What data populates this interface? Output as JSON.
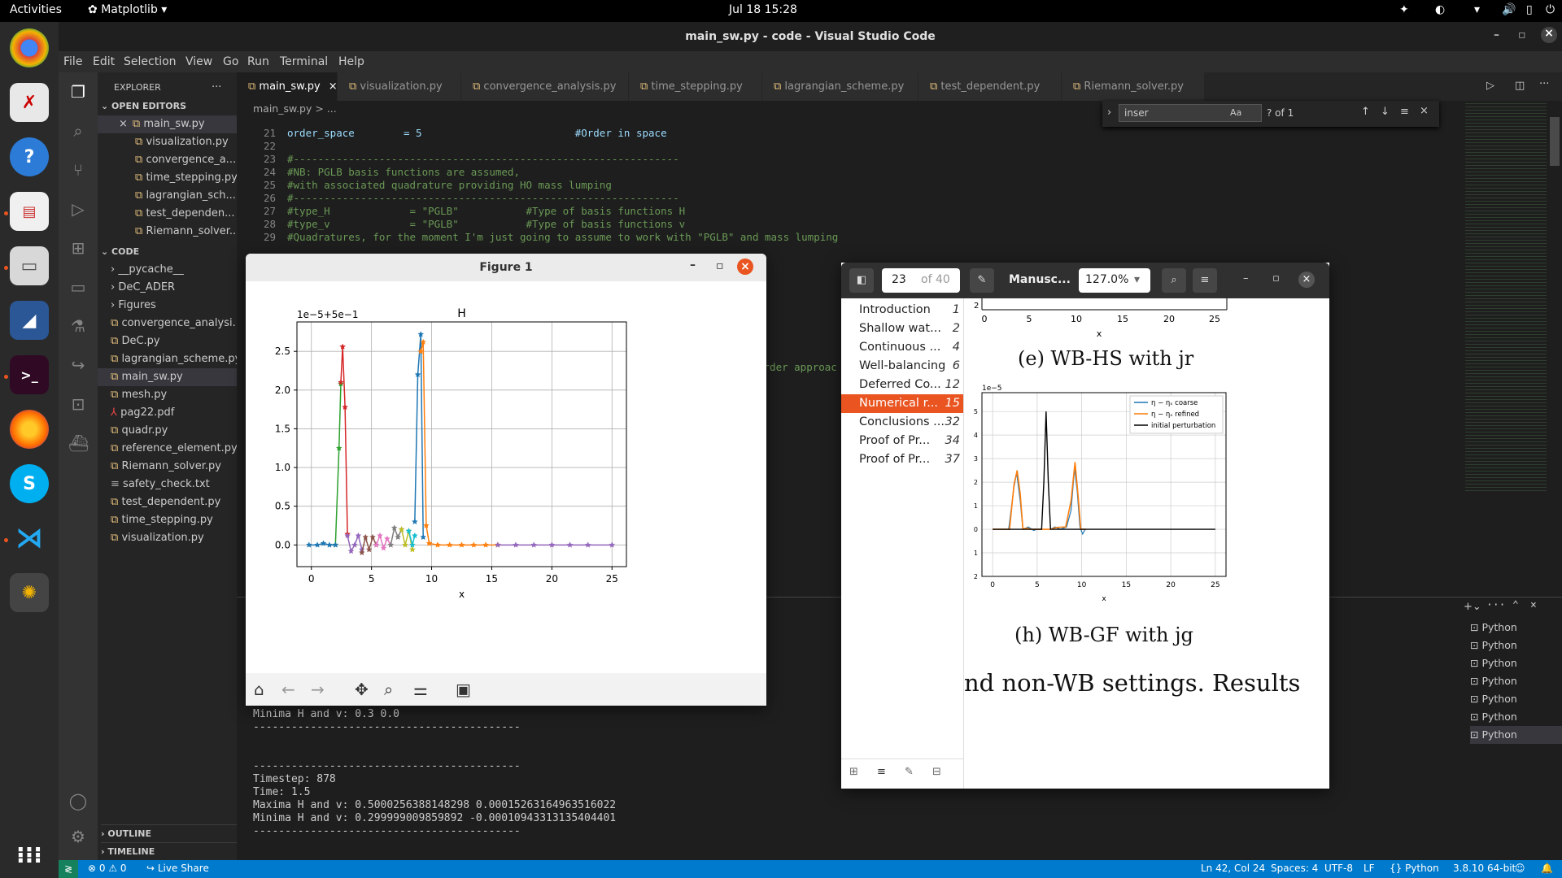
{
  "topbar": {
    "activities": "Activities",
    "app": "Matplotlib",
    "clock": "Jul 18  15:28"
  },
  "window_title": "main_sw.py - code - Visual Studio Code",
  "menu": [
    "File",
    "Edit",
    "Selection",
    "View",
    "Go",
    "Run",
    "Terminal",
    "Help"
  ],
  "explorer": {
    "title": "EXPLORER",
    "open_editors_label": "OPEN EDITORS",
    "open_editors": [
      "main_sw.py",
      "visualization.py",
      "convergence_a...",
      "time_stepping.py",
      "lagrangian_sch...",
      "test_dependen...",
      "Riemann_solver..."
    ],
    "folder_label": "CODE",
    "files": [
      "__pycache__",
      "DeC_ADER",
      "Figures",
      "convergence_analysi...",
      "DeC.py",
      "lagrangian_scheme.py",
      "main_sw.py",
      "mesh.py",
      "pag22.pdf",
      "quadr.py",
      "reference_element.py",
      "Riemann_solver.py",
      "safety_check.txt",
      "test_dependent.py",
      "time_stepping.py",
      "visualization.py"
    ],
    "outline_label": "OUTLINE",
    "timeline_label": "TIMELINE"
  },
  "tabs": [
    "main_sw.py",
    "visualization.py",
    "convergence_analysis.py",
    "time_stepping.py",
    "lagrangian_scheme.py",
    "test_dependent.py",
    "Riemann_solver.py"
  ],
  "breadcrumb": "main_sw.py > ...",
  "find": {
    "query": "inser",
    "result": "? of 1"
  },
  "code_lines": [
    {
      "n": "21",
      "t": "order_space        = 5                         #Order in space"
    },
    {
      "n": "22",
      "t": ""
    },
    {
      "n": "23",
      "t": "#---------------------------------------------------------------"
    },
    {
      "n": "24",
      "t": "#NB: PGLB basis functions are assumed,"
    },
    {
      "n": "25",
      "t": "#with associated quadrature providing HO mass lumping"
    },
    {
      "n": "26",
      "t": "#---------------------------------------------------------------"
    },
    {
      "n": "27",
      "t": "#type_H             = \"PGLB\"           #Type of basis functions H"
    },
    {
      "n": "28",
      "t": "#type_v             = \"PGLB\"           #Type of basis functions v"
    },
    {
      "n": "29",
      "t": "#Quadratures, for the moment I'm just going to assume to work with \"PGLB\" and mass lumping"
    }
  ],
  "code_fragment": "order approac",
  "terminal_lines": [
    "Minima H and v: 0.3 0.0",
    "------------------------------------------",
    "",
    "",
    "------------------------------------------",
    "Timestep: 878",
    "Time: 1.5",
    "Maxima H and v: 0.5000256388148298 0.00015263164963516022",
    "Minima H and v: 0.299999009859892 -0.00010943313135404401",
    "------------------------------------------"
  ],
  "terminal_instances": [
    "Python",
    "Python",
    "Python",
    "Python",
    "Python",
    "Python",
    "Python"
  ],
  "status": {
    "errors": "0",
    "warnings": "0",
    "live_share": "Live Share",
    "position": "Ln 42, Col 24",
    "spaces": "Spaces: 4",
    "encoding": "UTF-8",
    "eol": "LF",
    "language": "Python",
    "interpreter": "3.8.10 64-bit"
  },
  "figure_window": {
    "title": "Figure 1"
  },
  "chart_data": {
    "type": "line",
    "title": "H",
    "xlabel": "x",
    "ylabel": "",
    "offset_label": "1e−5+5e−1",
    "xlim": [
      -1.2,
      26.2
    ],
    "ylim": [
      -0.28,
      2.88
    ],
    "xticks": [
      "0",
      "5",
      "10",
      "15",
      "20",
      "25"
    ],
    "yticks": [
      "0.0",
      "0.5",
      "1.0",
      "1.5",
      "2.0",
      "2.5"
    ],
    "grid": true,
    "series": [
      {
        "color": "#1f77b4",
        "x": [
          8.6,
          8.85,
          9.1,
          9.3
        ],
        "y": [
          0.3,
          2.2,
          2.72,
          0.1
        ]
      },
      {
        "color": "#ff7f0e",
        "x": [
          9.1,
          9.3,
          9.55,
          9.8
        ],
        "y": [
          2.5,
          2.62,
          0.25,
          0.02
        ]
      },
      {
        "color": "#2ca02c",
        "x": [
          2.0,
          2.3,
          2.45
        ],
        "y": [
          0.0,
          1.25,
          2.08
        ]
      },
      {
        "color": "#d62728",
        "x": [
          2.45,
          2.6,
          2.8,
          3.0
        ],
        "y": [
          2.1,
          2.56,
          1.78,
          0.14
        ]
      },
      {
        "color": "#9467bd",
        "x": [
          3.0,
          3.3,
          3.6,
          3.9,
          4.2
        ],
        "y": [
          0.12,
          -0.08,
          0.0,
          0.12,
          -0.06
        ]
      },
      {
        "color": "#8c564b",
        "x": [
          4.2,
          4.5,
          4.8,
          5.1,
          5.4
        ],
        "y": [
          -0.1,
          0.1,
          -0.06,
          0.1,
          0.0
        ]
      },
      {
        "color": "#e377c2",
        "x": [
          5.4,
          5.7,
          6.0,
          6.3,
          6.6
        ],
        "y": [
          0.0,
          0.12,
          -0.04,
          0.08,
          0.0
        ]
      },
      {
        "color": "#7f7f7f",
        "x": [
          6.6,
          6.9,
          7.2,
          7.5
        ],
        "y": [
          0.0,
          0.22,
          0.1,
          0.2
        ]
      },
      {
        "color": "#bcbd22",
        "x": [
          7.5,
          7.8,
          8.1,
          8.4
        ],
        "y": [
          0.2,
          0.0,
          0.18,
          -0.06
        ]
      },
      {
        "color": "#17becf",
        "x": [
          8.1,
          8.4,
          8.6
        ],
        "y": [
          0.18,
          0.0,
          0.12
        ]
      },
      {
        "color": "#1f77b4",
        "x": [
          -0.2,
          0.5,
          1.0,
          1.5,
          2.0
        ],
        "y": [
          0.0,
          0.0,
          0.02,
          0.0,
          0.0
        ]
      },
      {
        "color": "#ff7f0e",
        "x": [
          9.8,
          10.5,
          11.5,
          12.5,
          13.5,
          14.5,
          15.5
        ],
        "y": [
          0.02,
          0.0,
          0.0,
          0.0,
          0.0,
          0.0,
          0.0
        ]
      },
      {
        "color": "#9467bd",
        "x": [
          15.5,
          17,
          18.5,
          20,
          21.5,
          23,
          25
        ],
        "y": [
          0.0,
          0.0,
          0.0,
          0.0,
          0.0,
          0.0,
          0.0
        ]
      }
    ]
  },
  "pdf": {
    "page": "23",
    "of": "of 40",
    "doc": "Manusc...",
    "zoom": "127.0%",
    "toc": [
      {
        "label": "Introduction",
        "page": "1"
      },
      {
        "label": "Shallow wat...",
        "page": "2"
      },
      {
        "label": "Continuous ...",
        "page": "4"
      },
      {
        "label": "Well-balancing",
        "page": "6"
      },
      {
        "label": "Deferred Co...",
        "page": "12"
      },
      {
        "label": "Numerical r...",
        "page": "15"
      },
      {
        "label": "Conclusions ...",
        "page": "32"
      },
      {
        "label": "Proof of Pr...",
        "page": "34"
      },
      {
        "label": "Proof of Pr...",
        "page": "37"
      }
    ],
    "caption_e": "(e) WB-HS with jr",
    "caption_h": "(h) WB-GF with jg",
    "body_text": "nd non-WB settings. Results",
    "plot_top_xticks": [
      "0",
      "5",
      "10",
      "15",
      "20",
      "25"
    ],
    "plot_top_xlabel": "x",
    "plot_h": {
      "offset": "1e−5",
      "xlabel": "x",
      "xticks": [
        "0",
        "5",
        "10",
        "15",
        "20",
        "25"
      ],
      "legend": [
        "η − ηₛ coarse",
        "η − ηₛ refined",
        "initial perturbation"
      ]
    }
  }
}
